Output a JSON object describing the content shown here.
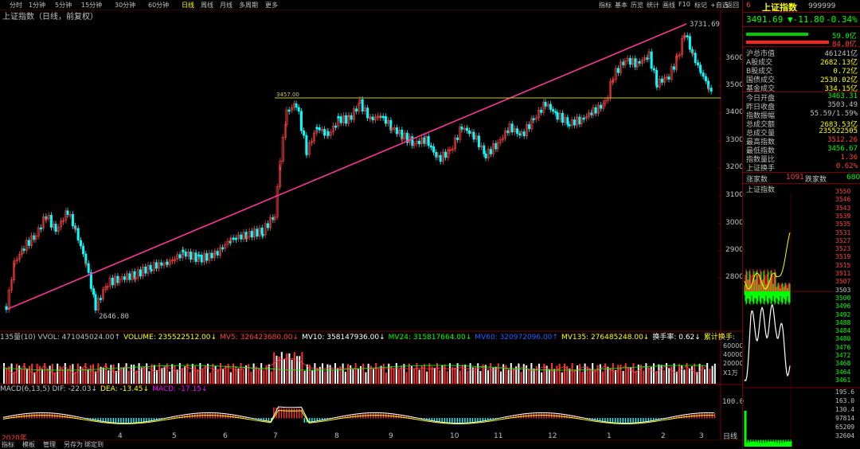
{
  "toolbar": {
    "periods": [
      "分时",
      "1分钟",
      "5分钟",
      "15分钟",
      "30分钟",
      "60分钟",
      "日线",
      "周线",
      "月线",
      "多周期",
      "更多"
    ],
    "active_period": "日线",
    "buttons": [
      "指标",
      "基本",
      "历览",
      "统计",
      "画线",
      "F10",
      "标记",
      "+自选",
      "返回"
    ]
  },
  "chart_header": "上证指数（日线，前复权）",
  "price_axis": [
    "3600",
    "3500",
    "3400",
    "3300",
    "3200",
    "3100",
    "3000",
    "2900",
    "2800"
  ],
  "price_labels": {
    "high": "3731.69",
    "low": "2646.80",
    "line": "3457.00"
  },
  "x_axis": [
    "2020年",
    "4",
    "5",
    "6",
    "7",
    "8",
    "9",
    "10",
    "11",
    "12",
    "1",
    "2",
    "3"
  ],
  "volume_bar": [
    {
      "t": "135量(10) VVOL: 471045024.00↑",
      "c": "#c0c0c0"
    },
    {
      "t": "VOLUME: 235522512.00↓",
      "c": "#ffff00"
    },
    {
      "t": "MV5: 326423680.00↓",
      "c": "#ff4040"
    },
    {
      "t": "MV10: 358147936.00↓",
      "c": "#ffffff"
    },
    {
      "t": "MV24: 315817664.00↓",
      "c": "#00ff00"
    },
    {
      "t": "MV60: 320972096.00↑",
      "c": "#2060ff"
    },
    {
      "t": "MV135: 276485248.00↓",
      "c": "#ffff00"
    },
    {
      "t": "换手率: 0.62↓",
      "c": "#ffffff"
    },
    {
      "t": "累计换手:",
      "c": "#ffff00"
    }
  ],
  "vol_axis": [
    "60000",
    "40000",
    "20000",
    "X1万"
  ],
  "macd_bar": [
    {
      "t": "MACD(6,13,5) DIF: -22.03↓",
      "c": "#c0c0c0"
    },
    {
      "t": "DEA: -13.45↓",
      "c": "#ffff00"
    },
    {
      "t": "MACD: -17.15↓",
      "c": "#ff00ff"
    }
  ],
  "macd_axis": [
    "100.0"
  ],
  "bottom_tabs": [
    "指标",
    "模板",
    "管理",
    "另存为",
    "绑定到"
  ],
  "bottom_right": "日线",
  "quote": {
    "index_no": "6",
    "name": "上证指数",
    "code": "999999",
    "price": "3491.69",
    "change": "▼-11.80",
    "pct": "-0.34%",
    "bar1": "59.0亿",
    "bar2": "84.0亿",
    "stats": [
      {
        "k": "沪总市值",
        "v": "461241亿",
        "c": "#c0c0c0"
      },
      {
        "k": "A股成交",
        "v": "2682.13亿",
        "c": "#ffff00"
      },
      {
        "k": "B股成交",
        "v": "0.72亿",
        "c": "#ffff00"
      },
      {
        "k": "国债成交",
        "v": "2530.02亿",
        "c": "#ffff00"
      },
      {
        "k": "基金成交",
        "v": "334.15亿",
        "c": "#ffff00"
      },
      {
        "k": "今日开盘",
        "v": "3463.31",
        "c": "#00ff00"
      },
      {
        "k": "昨日收盘",
        "v": "3503.49",
        "c": "#c0c0c0"
      },
      {
        "k": "指数振幅",
        "v": "55.59/1.59%",
        "c": "#c0c0c0"
      },
      {
        "k": "总成交额",
        "v": "2683.53亿",
        "c": "#ffff00"
      },
      {
        "k": "总成交量",
        "v": "235522505",
        "c": "#ffff00"
      },
      {
        "k": "最高指数",
        "v": "3512.26",
        "c": "#ff4040"
      },
      {
        "k": "最低指数",
        "v": "3456.67",
        "c": "#00ff00"
      },
      {
        "k": "指数量比",
        "v": "1.36",
        "c": "#ff4040"
      },
      {
        "k": "上证换手",
        "v": "0.62%",
        "c": "#ff4040"
      }
    ],
    "up_label": "涨家数",
    "up": "1091",
    "down_label": "跌家数",
    "down": "680",
    "mini_title": "上证指数",
    "mini_axis": [
      "3550",
      "3546",
      "3543",
      "3539",
      "3535",
      "3531",
      "3527",
      "3523",
      "3519",
      "3515",
      "3511",
      "3507",
      "3503",
      "3500",
      "3496",
      "3492",
      "3488",
      "3484",
      "3480",
      "3476",
      "3472",
      "3468",
      "3464",
      "3461"
    ],
    "mini_vol_axis": [
      "195.6",
      "163.0",
      "130.4",
      "97814",
      "65209",
      "32604"
    ]
  },
  "colors": {
    "up": "#ff4040",
    "down": "#00ffff",
    "trend": "#ff3399",
    "hline": "#c8c840"
  }
}
